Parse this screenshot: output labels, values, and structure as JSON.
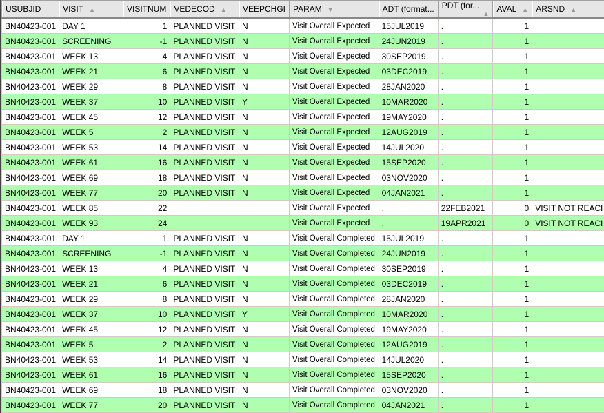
{
  "colors": {
    "alt_row": "#b0ffb0",
    "header": "#e6e6e6"
  },
  "columns": [
    {
      "label": "USUBJID",
      "sort": ""
    },
    {
      "label": "VISIT",
      "sort": "asc"
    },
    {
      "label": "VISITNUM",
      "sort": ""
    },
    {
      "label": "VEDECOD",
      "sort": "asc"
    },
    {
      "label": "VEEPCHGI",
      "sort": ""
    },
    {
      "label": "PARAM",
      "sort": "desc"
    },
    {
      "label": "ADT (format...",
      "sort": ""
    },
    {
      "label": "PDT (for...",
      "sort": "asc"
    },
    {
      "label": "AVAL",
      "sort": "asc"
    },
    {
      "label": "ARSND",
      "sort": "asc"
    }
  ],
  "rows": [
    [
      "BN40423-001",
      "DAY 1",
      "1",
      "PLANNED VISIT",
      "N",
      "Visit Overall Expected",
      "15JUL2019",
      ".",
      "1",
      ""
    ],
    [
      "BN40423-001",
      "SCREENING",
      "-1",
      "PLANNED VISIT",
      "N",
      "Visit Overall Expected",
      "24JUN2019",
      ".",
      "1",
      ""
    ],
    [
      "BN40423-001",
      "WEEK 13",
      "4",
      "PLANNED VISIT",
      "N",
      "Visit Overall Expected",
      "30SEP2019",
      ".",
      "1",
      ""
    ],
    [
      "BN40423-001",
      "WEEK 21",
      "6",
      "PLANNED VISIT",
      "N",
      "Visit Overall Expected",
      "03DEC2019",
      ".",
      "1",
      ""
    ],
    [
      "BN40423-001",
      "WEEK 29",
      "8",
      "PLANNED VISIT",
      "N",
      "Visit Overall Expected",
      "28JAN2020",
      ".",
      "1",
      ""
    ],
    [
      "BN40423-001",
      "WEEK 37",
      "10",
      "PLANNED VISIT",
      "Y",
      "Visit Overall Expected",
      "10MAR2020",
      ".",
      "1",
      ""
    ],
    [
      "BN40423-001",
      "WEEK 45",
      "12",
      "PLANNED VISIT",
      "N",
      "Visit Overall Expected",
      "19MAY2020",
      ".",
      "1",
      ""
    ],
    [
      "BN40423-001",
      "WEEK 5",
      "2",
      "PLANNED VISIT",
      "N",
      "Visit Overall Expected",
      "12AUG2019",
      ".",
      "1",
      ""
    ],
    [
      "BN40423-001",
      "WEEK 53",
      "14",
      "PLANNED VISIT",
      "N",
      "Visit Overall Expected",
      "14JUL2020",
      ".",
      "1",
      ""
    ],
    [
      "BN40423-001",
      "WEEK 61",
      "16",
      "PLANNED VISIT",
      "N",
      "Visit Overall Expected",
      "15SEP2020",
      ".",
      "1",
      ""
    ],
    [
      "BN40423-001",
      "WEEK 69",
      "18",
      "PLANNED VISIT",
      "N",
      "Visit Overall Expected",
      "03NOV2020",
      ".",
      "1",
      ""
    ],
    [
      "BN40423-001",
      "WEEK 77",
      "20",
      "PLANNED VISIT",
      "N",
      "Visit Overall Expected",
      "04JAN2021",
      ".",
      "1",
      ""
    ],
    [
      "BN40423-001",
      "WEEK 85",
      "22",
      "",
      "",
      "Visit Overall Expected",
      ".",
      "22FEB2021",
      "0",
      "VISIT NOT REACHED"
    ],
    [
      "BN40423-001",
      "WEEK 93",
      "24",
      "",
      "",
      "Visit Overall Expected",
      ".",
      "19APR2021",
      "0",
      "VISIT NOT REACHED"
    ],
    [
      "BN40423-001",
      "DAY 1",
      "1",
      "PLANNED VISIT",
      "N",
      "Visit Overall Completed",
      "15JUL2019",
      ".",
      "1",
      ""
    ],
    [
      "BN40423-001",
      "SCREENING",
      "-1",
      "PLANNED VISIT",
      "N",
      "Visit Overall Completed",
      "24JUN2019",
      ".",
      "1",
      ""
    ],
    [
      "BN40423-001",
      "WEEK 13",
      "4",
      "PLANNED VISIT",
      "N",
      "Visit Overall Completed",
      "30SEP2019",
      ".",
      "1",
      ""
    ],
    [
      "BN40423-001",
      "WEEK 21",
      "6",
      "PLANNED VISIT",
      "N",
      "Visit Overall Completed",
      "03DEC2019",
      ".",
      "1",
      ""
    ],
    [
      "BN40423-001",
      "WEEK 29",
      "8",
      "PLANNED VISIT",
      "N",
      "Visit Overall Completed",
      "28JAN2020",
      ".",
      "1",
      ""
    ],
    [
      "BN40423-001",
      "WEEK 37",
      "10",
      "PLANNED VISIT",
      "Y",
      "Visit Overall Completed",
      "10MAR2020",
      ".",
      "1",
      ""
    ],
    [
      "BN40423-001",
      "WEEK 45",
      "12",
      "PLANNED VISIT",
      "N",
      "Visit Overall Completed",
      "19MAY2020",
      ".",
      "1",
      ""
    ],
    [
      "BN40423-001",
      "WEEK 5",
      "2",
      "PLANNED VISIT",
      "N",
      "Visit Overall Completed",
      "12AUG2019",
      ".",
      "1",
      ""
    ],
    [
      "BN40423-001",
      "WEEK 53",
      "14",
      "PLANNED VISIT",
      "N",
      "Visit Overall Completed",
      "14JUL2020",
      ".",
      "1",
      ""
    ],
    [
      "BN40423-001",
      "WEEK 61",
      "16",
      "PLANNED VISIT",
      "N",
      "Visit Overall Completed",
      "15SEP2020",
      ".",
      "1",
      ""
    ],
    [
      "BN40423-001",
      "WEEK 69",
      "18",
      "PLANNED VISIT",
      "N",
      "Visit Overall Completed",
      "03NOV2020",
      ".",
      "1",
      ""
    ],
    [
      "BN40423-001",
      "WEEK 77",
      "20",
      "PLANNED VISIT",
      "N",
      "Visit Overall Completed",
      "04JAN2021",
      ".",
      "1",
      ""
    ]
  ]
}
